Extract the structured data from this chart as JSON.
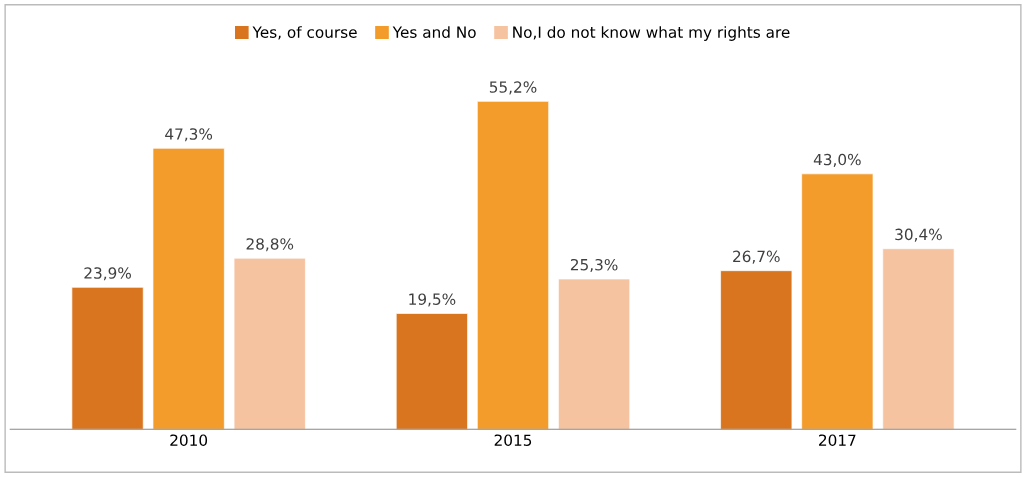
{
  "chart_data": {
    "type": "bar",
    "categories": [
      "2010",
      "2015",
      "2017"
    ],
    "series": [
      {
        "name": "Yes, of course",
        "color": "#d9741f",
        "values": [
          23.9,
          19.5,
          26.7
        ],
        "value_labels": [
          "23,9%",
          "19,5%",
          "26,7%"
        ]
      },
      {
        "name": "Yes and No",
        "color": "#f39b2b",
        "values": [
          47.3,
          55.2,
          43.0
        ],
        "value_labels": [
          "47,3%",
          "55,2%",
          "43,0%"
        ]
      },
      {
        "name": "No,I do not know what my rights are",
        "color": "#f6c3a0",
        "values": [
          28.8,
          25.3,
          30.4
        ],
        "value_labels": [
          "28,8%",
          "25,3%",
          "30,4%"
        ]
      }
    ],
    "legend": "top",
    "grid": false,
    "tick_labels": "x"
  }
}
